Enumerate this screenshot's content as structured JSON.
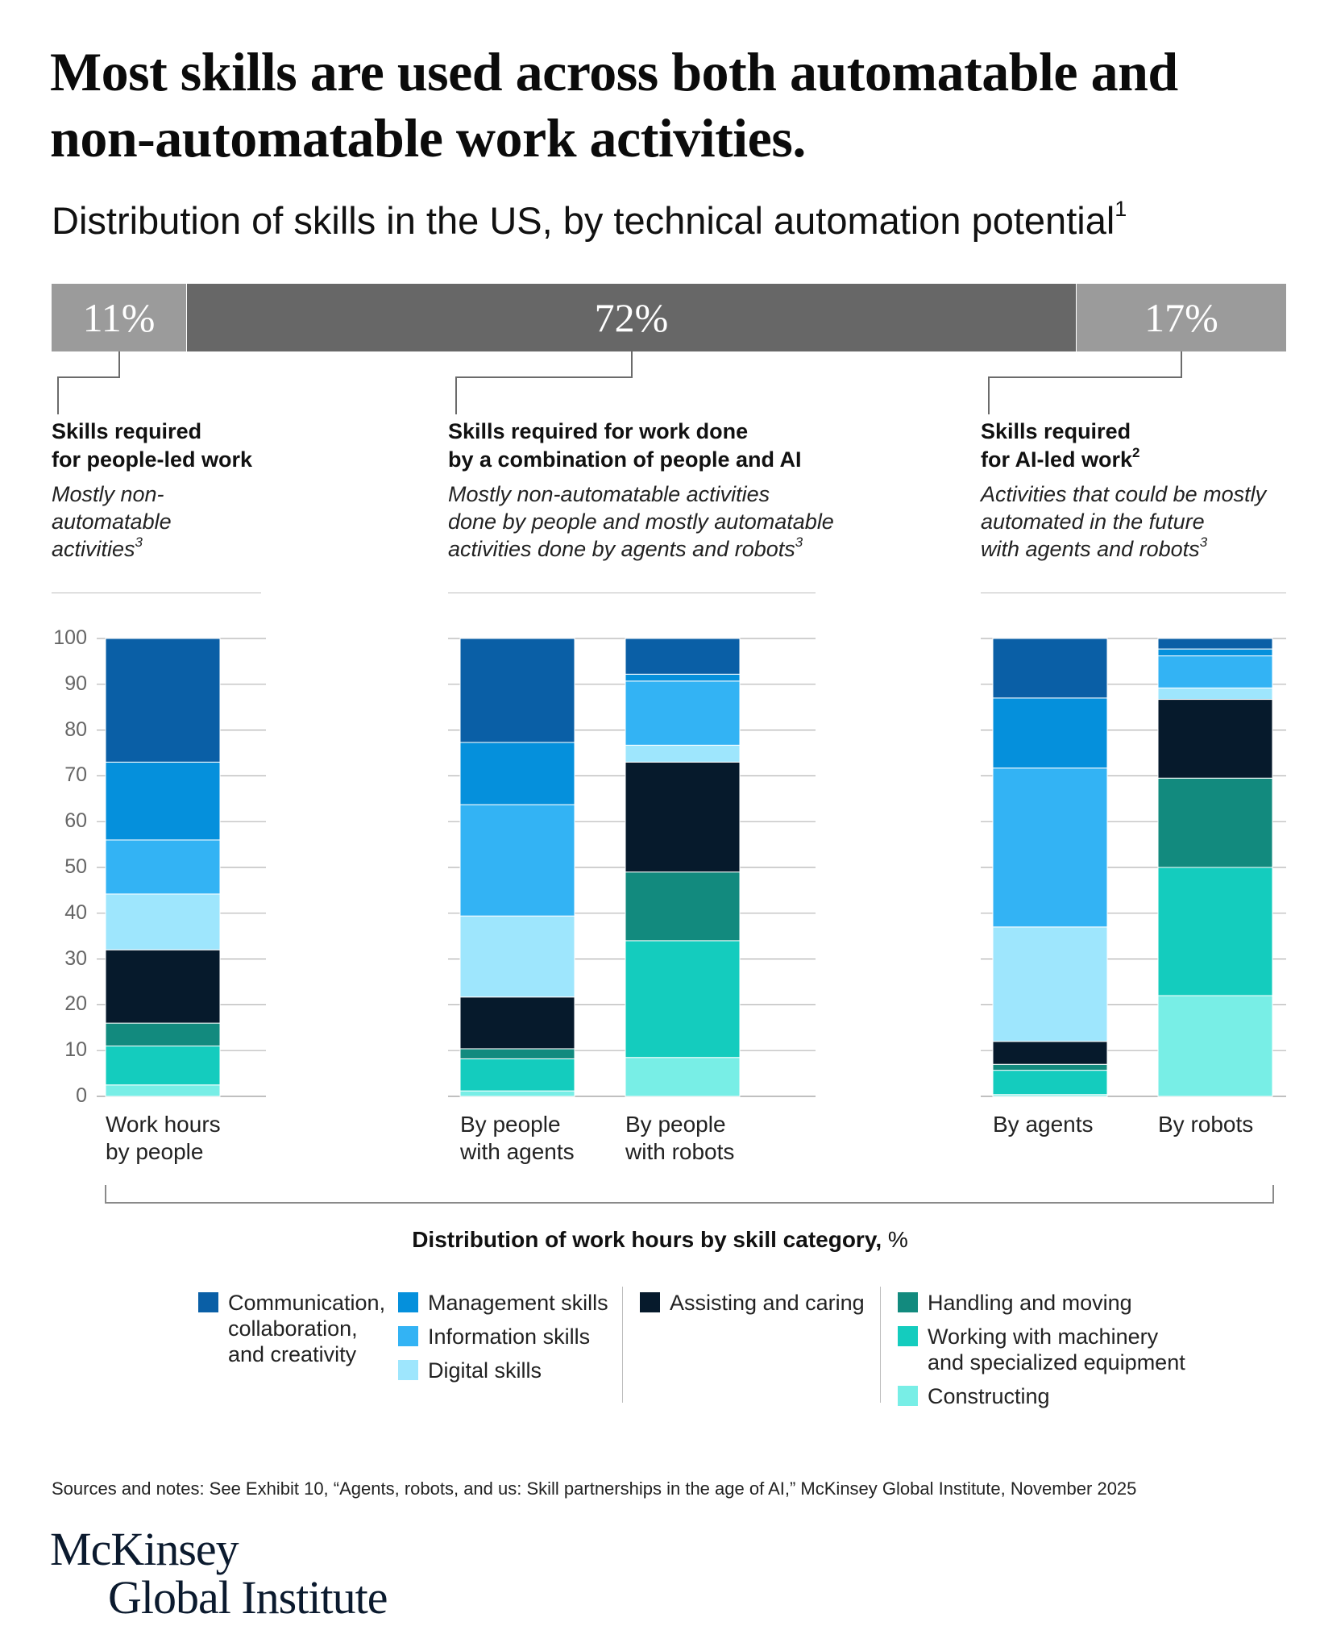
{
  "headline": "Most skills are used across both automatable and non-automatable work activities.",
  "subtitle": "Distribution of skills in the US, by technical automation potential",
  "subtitle_footnote": "1",
  "proportion_bar": [
    {
      "label": "11%",
      "value": 11,
      "color": "#9b9b9b"
    },
    {
      "label": "72%",
      "value": 72,
      "color": "#676767"
    },
    {
      "label": "17%",
      "value": 17,
      "color": "#9b9b9b"
    }
  ],
  "groups": [
    {
      "title": "Skills required\nfor people-led work",
      "title_footnote": "",
      "desc": "Mostly non-\nautomatable\nactivities",
      "desc_footnote": "3"
    },
    {
      "title": "Skills required for work done\nby a combination of people and AI",
      "title_footnote": "",
      "desc": "Mostly non-automatable activities\ndone by people and mostly automatable\nactivities done by agents and robots",
      "desc_footnote": "3"
    },
    {
      "title": "Skills required\nfor AI-led work",
      "title_footnote": "2",
      "desc": "Activities that could be mostly\nautomated in the future\nwith agents and robots",
      "desc_footnote": "3"
    }
  ],
  "legend_title_bold": "Distribution of work hours by skill category,",
  "legend_title_unit": " %",
  "sources": "Sources and notes: See Exhibit 10, “Agents, robots, and us: Skill partnerships in the age of AI,” McKinsey Global Institute, November 2025",
  "logo": {
    "line1": "McKinsey",
    "line2": "Global Institute"
  },
  "chart_data": {
    "type": "bar",
    "stacked": true,
    "title": "Distribution of work hours by skill category, %",
    "ylim": [
      0,
      100
    ],
    "yticks": [
      0,
      10,
      20,
      30,
      40,
      50,
      60,
      70,
      80,
      90,
      100
    ],
    "categories": [
      "Work hours\nby people",
      "By people\nwith agents",
      "By people\nwith robots",
      "By agents",
      "By robots"
    ],
    "series": [
      {
        "name": "Constructing",
        "color": "#78eee6",
        "values": [
          2.5,
          1.2,
          8.5,
          0.4,
          22
        ]
      },
      {
        "name": "Working with machinery\nand specialized equipment",
        "color": "#14ccbe",
        "values": [
          8.5,
          7,
          25.5,
          5.3,
          28
        ]
      },
      {
        "name": "Handling and moving",
        "color": "#128a7e",
        "values": [
          5,
          2.2,
          15,
          1.3,
          19.5
        ]
      },
      {
        "name": "Assisting and caring",
        "color": "#061a2c",
        "values": [
          16,
          11.3,
          24,
          5,
          17.2
        ]
      },
      {
        "name": "Digital skills",
        "color": "#9ee6fd",
        "values": [
          12.2,
          17.7,
          3.7,
          25,
          2.5
        ]
      },
      {
        "name": "Information skills",
        "color": "#33b3f4",
        "values": [
          11.8,
          24.3,
          14,
          34.7,
          7
        ]
      },
      {
        "name": "Management skills",
        "color": "#0590dc",
        "values": [
          17,
          13.6,
          1.5,
          15.3,
          1.5
        ]
      },
      {
        "name": "Communication,\ncollaboration,\nand creativity",
        "color": "#0a5fa6",
        "values": [
          27,
          22.7,
          7.8,
          13,
          2.3
        ]
      }
    ]
  }
}
